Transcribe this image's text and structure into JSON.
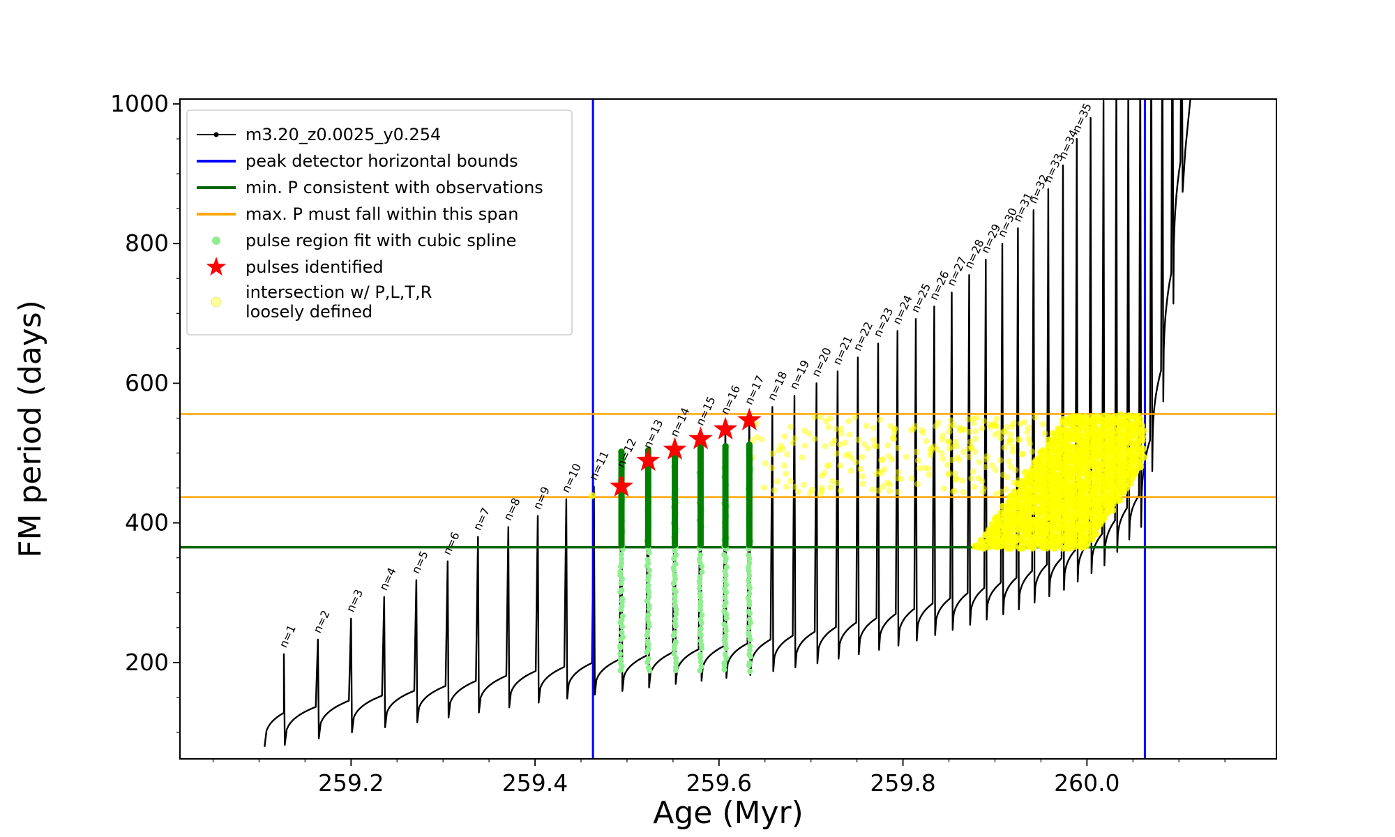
{
  "axes": {
    "xlabel": "Age (Myr)",
    "ylabel": "FM period (days)",
    "xlim": [
      259.014,
      260.206
    ],
    "ylim": [
      62,
      1007
    ],
    "xticks": [
      259.2,
      259.4,
      259.6,
      259.8,
      260.0
    ],
    "xtick_labels": [
      "259.2",
      "259.4",
      "259.6",
      "259.8",
      "260.0"
    ],
    "yticks": [
      200,
      400,
      600,
      800,
      1000
    ],
    "ytick_labels": [
      "200",
      "400",
      "600",
      "800",
      "1000"
    ],
    "x_minor_step": 0.05,
    "y_minor_step": 50,
    "grid": false
  },
  "colors": {
    "series": "#000000",
    "bounds_blue": "#0000ff",
    "min_p_green": "#006400",
    "max_p_orange": "#ffa500",
    "spline_dot": "#90ee90",
    "spline_bar": "#008000",
    "star_red": "#ff0000",
    "yellow": "#ffff00",
    "legend_border": "#cccccc"
  },
  "legend": {
    "position": "upper-left",
    "items": [
      {
        "symbol": "line-dot",
        "color": "#000000",
        "lines": [
          "m3.20_z0.0025_y0.254"
        ]
      },
      {
        "symbol": "line",
        "color": "#0000ff",
        "lines": [
          "peak detector horizontal bounds"
        ]
      },
      {
        "symbol": "line",
        "color": "#006400",
        "lines": [
          "min. P consistent with observations"
        ]
      },
      {
        "symbol": "line",
        "color": "#ffa500",
        "lines": [
          "max. P must fall within this span"
        ]
      },
      {
        "symbol": "dot",
        "color": "#90ee90",
        "lines": [
          "pulse region fit with cubic spline"
        ]
      },
      {
        "symbol": "star",
        "color": "#ff0000",
        "lines": [
          "pulses identified"
        ]
      },
      {
        "symbol": "dot-pale",
        "color": "#ffffa0",
        "lines": [
          "intersection w/ P,L,T,R",
          "loosely defined"
        ]
      }
    ]
  },
  "chart_data": {
    "type": "line",
    "title": "",
    "xlabel": "Age (Myr)",
    "ylabel": "FM period (days)",
    "series_label": "m3.20_z0.0025_y0.254",
    "xlim": [
      259.014,
      260.206
    ],
    "ylim": [
      62,
      1007
    ],
    "start_age": 259.106,
    "pulses": [
      {
        "n": 1,
        "label": "n=1",
        "age": 259.127,
        "peak": 212
      },
      {
        "n": 2,
        "label": "n=2",
        "age": 259.164,
        "peak": 233
      },
      {
        "n": 3,
        "label": "n=3",
        "age": 259.2,
        "peak": 263
      },
      {
        "n": 4,
        "label": "n=4",
        "age": 259.236,
        "peak": 294
      },
      {
        "n": 5,
        "label": "n=5",
        "age": 259.271,
        "peak": 318
      },
      {
        "n": 6,
        "label": "n=6",
        "age": 259.305,
        "peak": 345
      },
      {
        "n": 7,
        "label": "n=7",
        "age": 259.338,
        "peak": 380
      },
      {
        "n": 8,
        "label": "n=8",
        "age": 259.371,
        "peak": 394
      },
      {
        "n": 9,
        "label": "n=9",
        "age": 259.403,
        "peak": 410
      },
      {
        "n": 10,
        "label": "n=10",
        "age": 259.434,
        "peak": 434
      },
      {
        "n": 11,
        "label": "n=11",
        "age": 259.464,
        "peak": 452
      },
      {
        "n": 12,
        "label": "n=12",
        "age": 259.494,
        "peak": 470
      },
      {
        "n": 13,
        "label": "n=13",
        "age": 259.523,
        "peak": 497
      },
      {
        "n": 14,
        "label": "n=14",
        "age": 259.552,
        "peak": 514
      },
      {
        "n": 15,
        "label": "n=15",
        "age": 259.58,
        "peak": 530
      },
      {
        "n": 16,
        "label": "n=16",
        "age": 259.607,
        "peak": 546
      },
      {
        "n": 17,
        "label": "n=17",
        "age": 259.633,
        "peak": 560
      },
      {
        "n": 18,
        "label": "n=18",
        "age": 259.658,
        "peak": 566
      },
      {
        "n": 19,
        "label": "n=19",
        "age": 259.682,
        "peak": 582
      },
      {
        "n": 20,
        "label": "n=20",
        "age": 259.706,
        "peak": 600
      },
      {
        "n": 21,
        "label": "n=21",
        "age": 259.729,
        "peak": 617
      },
      {
        "n": 22,
        "label": "n=22",
        "age": 259.751,
        "peak": 637
      },
      {
        "n": 23,
        "label": "n=23",
        "age": 259.773,
        "peak": 657
      },
      {
        "n": 24,
        "label": "n=24",
        "age": 259.794,
        "peak": 675
      },
      {
        "n": 25,
        "label": "n=25",
        "age": 259.814,
        "peak": 692
      },
      {
        "n": 26,
        "label": "n=26",
        "age": 259.834,
        "peak": 710
      },
      {
        "n": 27,
        "label": "n=27",
        "age": 259.853,
        "peak": 730
      },
      {
        "n": 28,
        "label": "n=28",
        "age": 259.872,
        "peak": 755
      },
      {
        "n": 29,
        "label": "n=29",
        "age": 259.89,
        "peak": 777
      },
      {
        "n": 30,
        "label": "n=30",
        "age": 259.908,
        "peak": 800
      },
      {
        "n": 31,
        "label": "n=31",
        "age": 259.925,
        "peak": 822
      },
      {
        "n": 32,
        "label": "n=32",
        "age": 259.942,
        "peak": 848
      },
      {
        "n": 33,
        "label": "n=33",
        "age": 259.958,
        "peak": 878
      },
      {
        "n": 34,
        "label": "n=34",
        "age": 259.974,
        "peak": 912
      },
      {
        "n": 35,
        "label": "n=35",
        "age": 259.989,
        "peak": 950
      }
    ],
    "extra_pulses": [
      {
        "age": 260.004,
        "peak": 980
      },
      {
        "age": 260.018,
        "peak": 1005
      },
      {
        "age": 260.032,
        "peak": 1030
      },
      {
        "age": 260.045,
        "peak": 1055
      },
      {
        "age": 260.058,
        "peak": 1080
      },
      {
        "age": 260.07,
        "peak": 1105
      },
      {
        "age": 260.082,
        "peak": 1130
      },
      {
        "age": 260.093,
        "peak": 1155
      },
      {
        "age": 260.103,
        "peak": 1180
      }
    ],
    "baseline_shoulder_anchors": [
      [
        259.05,
        118
      ],
      [
        259.127,
        128
      ],
      [
        259.2,
        146
      ],
      [
        259.3,
        166
      ],
      [
        259.4,
        188
      ],
      [
        259.464,
        200
      ],
      [
        259.55,
        215
      ],
      [
        259.633,
        228
      ],
      [
        259.7,
        243
      ],
      [
        259.8,
        272
      ],
      [
        259.872,
        300
      ],
      [
        259.925,
        322
      ],
      [
        259.974,
        350
      ],
      [
        260.018,
        385
      ],
      [
        260.058,
        440
      ],
      [
        260.07,
        520
      ],
      [
        260.082,
        620
      ],
      [
        260.093,
        760
      ],
      [
        260.103,
        920
      ],
      [
        260.11,
        1010
      ]
    ],
    "dip_offset": 46,
    "peak_detector_bounds": {
      "label": "peak detector horizontal bounds",
      "x": [
        259.463,
        260.063
      ]
    },
    "min_p_line": {
      "label": "min. P consistent with observations",
      "y": 365
    },
    "max_p_span": {
      "label": "max. P must fall within this span",
      "y": [
        437,
        556
      ]
    },
    "stars": {
      "label": "pulses identified",
      "points": [
        [
          259.494,
          452
        ],
        [
          259.523,
          489
        ],
        [
          259.552,
          505
        ],
        [
          259.58,
          520
        ],
        [
          259.607,
          534
        ],
        [
          259.633,
          547
        ]
      ]
    },
    "spline_columns": {
      "label": "pulse region fit with cubic spline",
      "dot_y_min": 188,
      "columns": [
        {
          "age": 259.494,
          "bar": [
            368,
            502
          ]
        },
        {
          "age": 259.523,
          "bar": [
            368,
            504
          ]
        },
        {
          "age": 259.552,
          "bar": [
            368,
            506
          ]
        },
        {
          "age": 259.58,
          "bar": [
            368,
            508
          ]
        },
        {
          "age": 259.607,
          "bar": [
            368,
            510
          ]
        },
        {
          "age": 259.633,
          "bar": [
            368,
            512
          ]
        }
      ]
    },
    "intersection_region": {
      "label": "intersection w/ P,L,T,R loosely defined",
      "sparse_band": {
        "x": [
          259.632,
          260.02
        ],
        "y": [
          441,
          552
        ],
        "count": 300
      },
      "dense_wedge": {
        "x": [
          259.878,
          260.06
        ],
        "lower_y_flat": 366,
        "lower_rise_start_x": 259.999,
        "lower_y_end": 484,
        "upper_y_max": 554,
        "upper_slope_per_myr": 1880
      },
      "single_points": [
        [
          259.462,
          439
        ]
      ]
    }
  }
}
